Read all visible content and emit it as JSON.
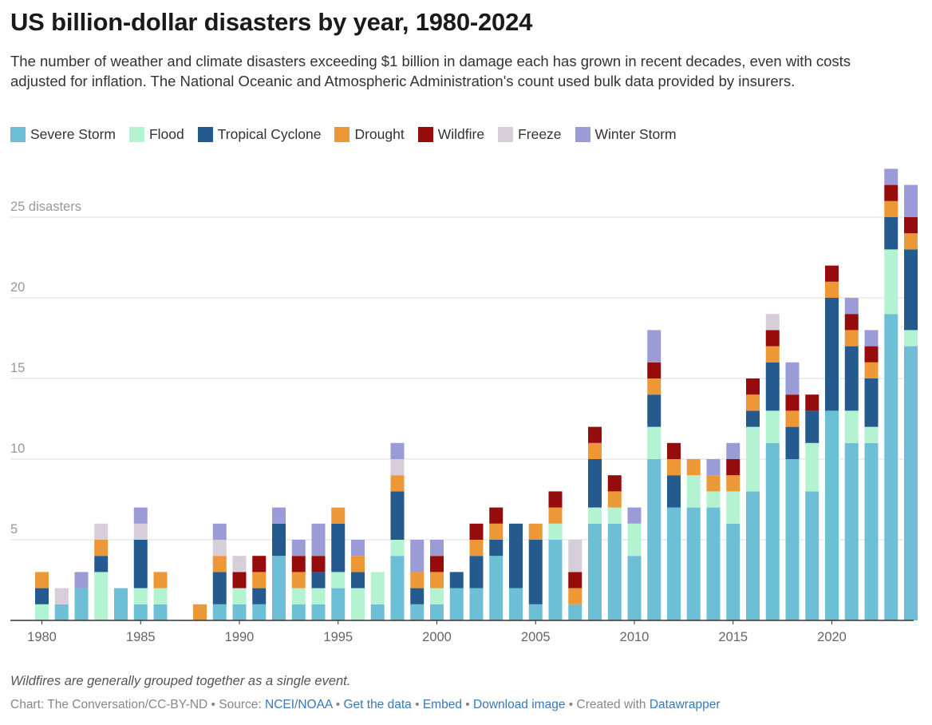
{
  "title": "US billion-dollar disasters by year, 1980-2024",
  "subtitle": "The number of weather and climate disasters exceeding $1 billion in damage each has grown in recent decades, even with costs adjusted for inflation. The National Oceanic and Atmospheric Administration's count used bulk data provided by insurers.",
  "legend": [
    {
      "label": "Severe Storm",
      "color": "#6cbfd5"
    },
    {
      "label": "Flood",
      "color": "#b3f3d1"
    },
    {
      "label": "Tropical Cyclone",
      "color": "#245a8e"
    },
    {
      "label": "Drought",
      "color": "#ec9837"
    },
    {
      "label": "Wildfire",
      "color": "#960c0d"
    },
    {
      "label": "Freeze",
      "color": "#d6ced9"
    },
    {
      "label": "Winter Storm",
      "color": "#9a9bd7"
    }
  ],
  "note": "Wildfires are generally grouped together as a single event.",
  "footer": {
    "prefix": "Chart: The Conversation/CC-BY-ND • Source: ",
    "source": "NCEI/NOAA",
    "sep1": " • ",
    "get_data": "Get the data",
    "sep2": " • ",
    "embed": "Embed",
    "sep3": "  • ",
    "download": "Download image",
    "sep4": " • Created with ",
    "datawrapper": "Datawrapper"
  },
  "chart_data": {
    "type": "bar",
    "stacked": true,
    "x": [
      1980,
      1981,
      1982,
      1983,
      1984,
      1985,
      1986,
      1987,
      1988,
      1989,
      1990,
      1991,
      1992,
      1993,
      1994,
      1995,
      1996,
      1997,
      1998,
      1999,
      2000,
      2001,
      2002,
      2003,
      2004,
      2005,
      2006,
      2007,
      2008,
      2009,
      2010,
      2011,
      2012,
      2013,
      2014,
      2015,
      2016,
      2017,
      2018,
      2019,
      2020,
      2021,
      2022,
      2023,
      2024
    ],
    "x_ticks": [
      1980,
      1985,
      1990,
      1995,
      2000,
      2005,
      2010,
      2015,
      2020
    ],
    "y_ticks": [
      5,
      10,
      15,
      20,
      25
    ],
    "y_tick_labels": [
      "5",
      "10",
      "15",
      "20",
      "25 disasters"
    ],
    "ylim": [
      0,
      28
    ],
    "series": [
      {
        "name": "Severe Storm",
        "color": "#6cbfd5",
        "values": [
          0,
          1,
          2,
          0,
          2,
          1,
          1,
          0,
          0,
          1,
          1,
          1,
          4,
          1,
          1,
          2,
          0,
          1,
          4,
          1,
          1,
          2,
          2,
          4,
          2,
          1,
          5,
          1,
          6,
          6,
          4,
          10,
          7,
          7,
          7,
          6,
          8,
          11,
          10,
          8,
          13,
          11,
          11,
          19,
          17
        ]
      },
      {
        "name": "Flood",
        "color": "#b3f3d1",
        "values": [
          1,
          0,
          0,
          3,
          0,
          1,
          1,
          0,
          0,
          0,
          1,
          0,
          0,
          1,
          1,
          1,
          2,
          2,
          1,
          0,
          1,
          0,
          0,
          0,
          0,
          0,
          1,
          0,
          1,
          1,
          2,
          2,
          0,
          2,
          1,
          2,
          4,
          2,
          0,
          3,
          0,
          2,
          1,
          4,
          1
        ]
      },
      {
        "name": "Tropical Cyclone",
        "color": "#245a8e",
        "values": [
          1,
          0,
          0,
          1,
          0,
          3,
          0,
          0,
          0,
          2,
          0,
          1,
          2,
          0,
          1,
          3,
          1,
          0,
          3,
          1,
          0,
          1,
          2,
          1,
          4,
          4,
          0,
          0,
          3,
          0,
          0,
          2,
          2,
          0,
          0,
          0,
          1,
          3,
          2,
          2,
          7,
          4,
          3,
          2,
          5
        ]
      },
      {
        "name": "Drought",
        "color": "#ec9837",
        "values": [
          1,
          0,
          0,
          1,
          0,
          0,
          1,
          0,
          1,
          1,
          0,
          1,
          0,
          1,
          0,
          1,
          1,
          0,
          1,
          1,
          1,
          0,
          1,
          1,
          0,
          1,
          1,
          1,
          1,
          1,
          0,
          1,
          1,
          1,
          1,
          1,
          1,
          1,
          1,
          0,
          1,
          1,
          1,
          1,
          1
        ]
      },
      {
        "name": "Wildfire",
        "color": "#960c0d",
        "values": [
          0,
          0,
          0,
          0,
          0,
          0,
          0,
          0,
          0,
          0,
          1,
          1,
          0,
          1,
          1,
          0,
          0,
          0,
          0,
          0,
          1,
          0,
          1,
          1,
          0,
          0,
          1,
          1,
          1,
          1,
          0,
          1,
          1,
          0,
          0,
          1,
          1,
          1,
          1,
          1,
          1,
          1,
          1,
          1,
          1
        ]
      },
      {
        "name": "Freeze",
        "color": "#d6ced9",
        "values": [
          0,
          1,
          0,
          1,
          0,
          1,
          0,
          0,
          0,
          1,
          1,
          0,
          0,
          0,
          0,
          0,
          0,
          0,
          1,
          0,
          0,
          0,
          0,
          0,
          0,
          0,
          0,
          2,
          0,
          0,
          0,
          0,
          0,
          0,
          0,
          0,
          0,
          1,
          0,
          0,
          0,
          0,
          0,
          0,
          0
        ]
      },
      {
        "name": "Winter Storm",
        "color": "#9a9bd7",
        "values": [
          0,
          0,
          1,
          0,
          0,
          1,
          0,
          0,
          0,
          1,
          0,
          0,
          1,
          1,
          2,
          0,
          1,
          0,
          1,
          2,
          1,
          0,
          0,
          0,
          0,
          0,
          0,
          0,
          0,
          0,
          1,
          2,
          0,
          0,
          1,
          1,
          0,
          0,
          2,
          0,
          0,
          1,
          1,
          1,
          2
        ]
      }
    ]
  }
}
